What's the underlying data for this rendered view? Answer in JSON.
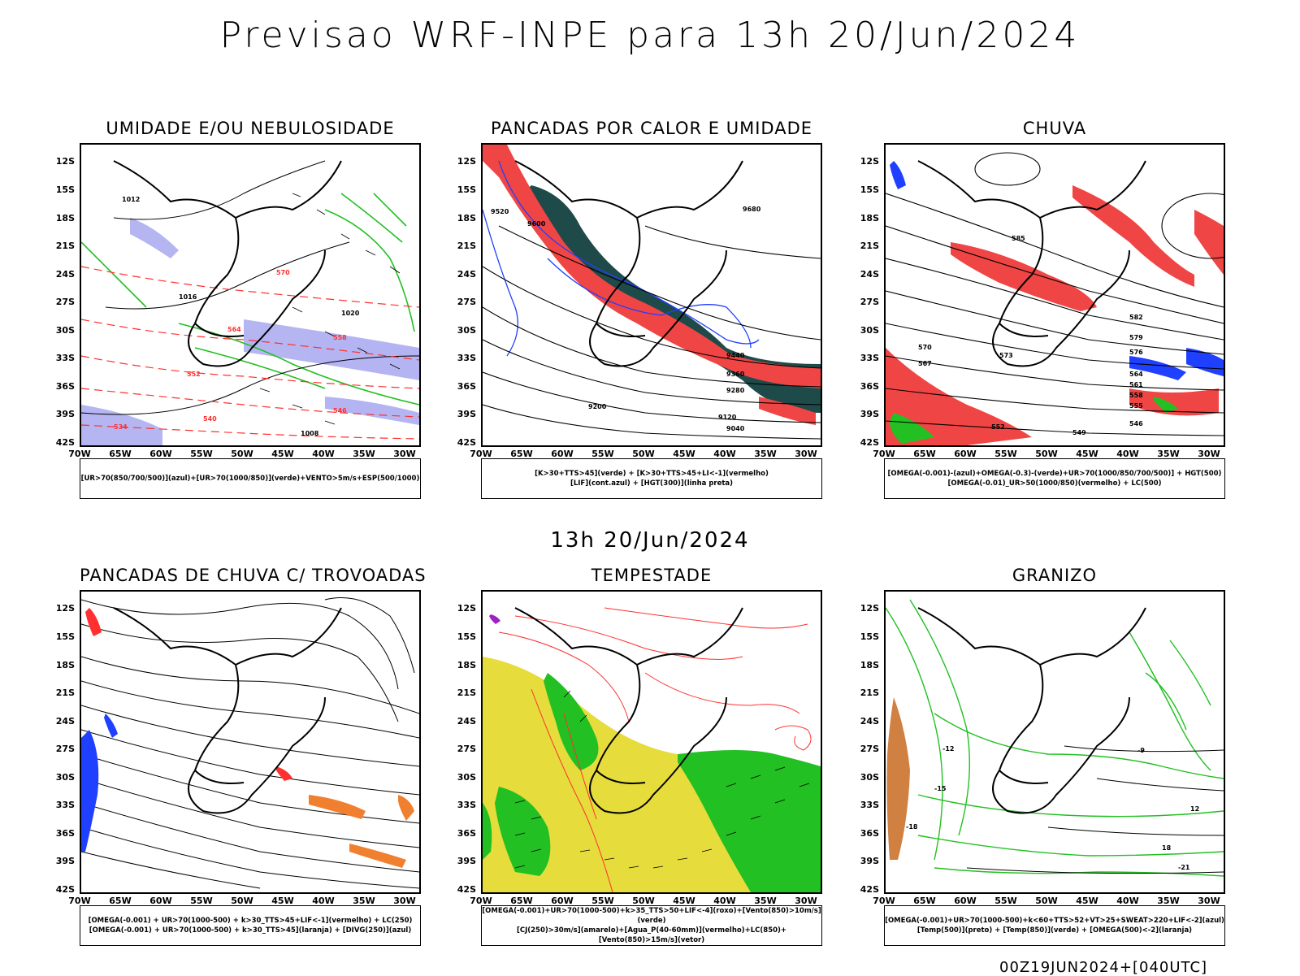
{
  "header": {
    "title": "Previsao WRF-INPE  para 13h 20/Jun/2024"
  },
  "middle": {
    "title": "13h 20/Jun/2024"
  },
  "footer": {
    "run": "00Z19JUN2024+[040UTC]"
  },
  "axes": {
    "lat_labels": [
      "12S",
      "15S",
      "18S",
      "21S",
      "24S",
      "27S",
      "30S",
      "33S",
      "36S",
      "39S",
      "42S"
    ],
    "lon_labels": [
      "70W",
      "65W",
      "60W",
      "55W",
      "50W",
      "45W",
      "40W",
      "35W",
      "30W"
    ]
  },
  "panels": [
    {
      "title": "UMIDADE E/OU NEBULOSIDADE",
      "legend": [
        "[UR>70(850/700/500)](azul)+[UR>70(1000/850)](verde)+VENTO>5m/s+ESP(500/1000)"
      ],
      "contour_labels": [
        "1012",
        "1016",
        "1020",
        "1008",
        "570",
        "564",
        "558",
        "552",
        "546",
        "540",
        "534"
      ]
    },
    {
      "title": "PANCADAS POR CALOR E UMIDADE",
      "legend": [
        "[K>30+TTS>45](verde) + [K>30+TTS>45+LI<-1](vermelho)",
        "[LIF](cont.azul) + [HGT(300)](linha preta)"
      ],
      "contour_labels": [
        "9520",
        "9600",
        "9680",
        "9440",
        "9360",
        "9280",
        "9200",
        "9120",
        "9040"
      ]
    },
    {
      "title": "CHUVA",
      "legend": [
        "[OMEGA(-0.001)-(azul)+OMEGA(-0.3)-(verde)+UR>70(1000/850/700/500)] + HGT(500)",
        "[OMEGA(-0.01)_UR>50(1000/850)(vermelho) + LC(500)"
      ],
      "contour_labels": [
        "585",
        "582",
        "579",
        "576",
        "573",
        "570",
        "567",
        "564",
        "561",
        "558",
        "555",
        "552",
        "549",
        "546"
      ]
    },
    {
      "title": "PANCADAS DE CHUVA C/ TROVOADAS",
      "legend": [
        "[OMEGA(-0.001) + UR>70(1000-500) + k>30_TTS>45+LIF<-1](vermelho) + LC(250)",
        "[OMEGA(-0.001) + UR>70(1000-500) + k>30_TTS>45](laranja) + [DIVG(250)](azul)"
      ],
      "contour_labels": []
    },
    {
      "title": "TEMPESTADE",
      "legend": [
        "[OMEGA(-0.001)+UR>70(1000-500)+k>35_TTS>50+LIF<-4](roxo)+[Vento(850)>10m/s](verde)",
        "[CJ(250)>30m/s](amarelo)+[Agua_P(40-60mm)](vermelho)+LC(850)+[Vento(850)>15m/s](vetor)"
      ],
      "contour_labels": []
    },
    {
      "title": "GRANIZO",
      "legend": [
        "[OMEGA(-0.001)+UR>70(1000-500)+k<60+TTS>52+VT>25+SWEAT>220+LIF<-2](azul)",
        "[Temp(500)](preto) + [Temp(850)](verde) + [OMEGA(500)<-2](laranja)"
      ],
      "contour_labels": [
        "-9",
        "-12",
        "-15",
        "-18",
        "-21",
        "12",
        "18"
      ]
    }
  ]
}
